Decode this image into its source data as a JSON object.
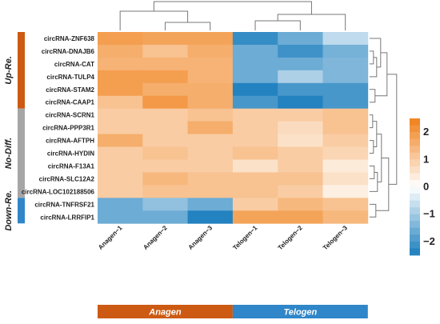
{
  "chart_data": {
    "type": "heatmap",
    "columns": [
      "Anagen−1",
      "Anagen−2",
      "Anagen−3",
      "Telogen−1",
      "Telogen−2",
      "Telogen−3"
    ],
    "rows": [
      "circRNA-ZNF638",
      "circRNA-DNAJB6",
      "circRNA-CAT",
      "circRNA-TULP4",
      "circRNA-STAM2",
      "circRNA-CAAP1",
      "circRNA-SCRN1",
      "circRNA-PPP3R1",
      "circRNA-AFTPH",
      "circRNA-HYDIN",
      "circRNA-F13A1",
      "circRNA-SLC12A2",
      "circRNA-LOC102188506",
      "circRNA-TNFRSF21",
      "circRNA-LRRFIP1"
    ],
    "values": [
      [
        1.9,
        1.8,
        1.8,
        -2.2,
        -1.6,
        -0.7
      ],
      [
        1.6,
        1.2,
        1.6,
        -1.6,
        -2.1,
        -1.5
      ],
      [
        1.5,
        1.5,
        1.5,
        -1.6,
        -1.6,
        -1.4
      ],
      [
        1.9,
        1.9,
        1.5,
        -1.6,
        -0.9,
        -1.4
      ],
      [
        1.9,
        1.6,
        1.6,
        -2.4,
        -2.0,
        -2.0
      ],
      [
        1.2,
        2.0,
        1.6,
        -2.0,
        -2.4,
        -2.0
      ],
      [
        1.0,
        1.0,
        1.2,
        1.0,
        1.0,
        1.2
      ],
      [
        1.0,
        1.0,
        1.6,
        1.0,
        0.7,
        1.2
      ],
      [
        1.6,
        1.0,
        1.0,
        1.0,
        0.6,
        1.0
      ],
      [
        1.0,
        1.2,
        1.0,
        1.2,
        1.0,
        0.8
      ],
      [
        1.0,
        1.0,
        1.0,
        0.6,
        1.0,
        0.4
      ],
      [
        1.0,
        1.4,
        1.2,
        1.2,
        1.2,
        0.6
      ],
      [
        1.0,
        1.2,
        1.2,
        1.2,
        1.0,
        0.3
      ],
      [
        -1.6,
        -1.2,
        -1.6,
        1.0,
        1.4,
        1.2
      ],
      [
        -1.6,
        -1.6,
        -2.4,
        1.8,
        1.8,
        1.4
      ]
    ],
    "row_groups": [
      {
        "label": "Up-Re.",
        "count": 6,
        "color": "#cc5a12"
      },
      {
        "label": "No-Diff.",
        "count": 7,
        "color": "#a6a6a6"
      },
      {
        "label": "Down-Re.",
        "count": 2,
        "color": "#2f86c8"
      }
    ],
    "column_groups": [
      {
        "label": "Anagen",
        "count": 3,
        "color": "#cc5a12"
      },
      {
        "label": "Telogen",
        "count": 3,
        "color": "#2f86c8"
      }
    ],
    "color_scale": {
      "min": -2.5,
      "max": 2.5,
      "ticks": [
        "2",
        "1",
        "0",
        "−1",
        "−2"
      ],
      "tick_values": [
        2,
        1,
        0,
        -1,
        -2
      ],
      "low_color": "#1a7dbd",
      "mid_color": "#ffffff",
      "high_color": "#f08019"
    }
  }
}
